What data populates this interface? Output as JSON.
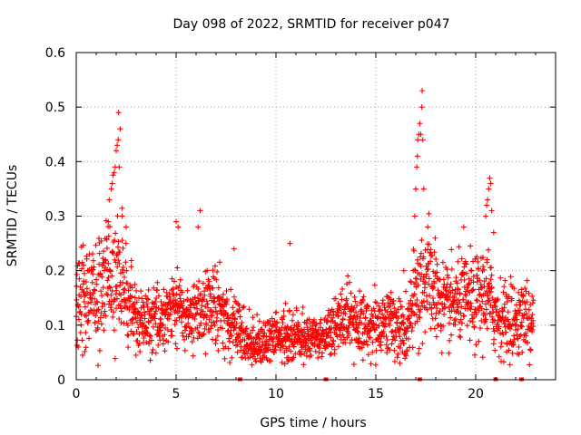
{
  "chart_data": {
    "type": "scatter",
    "title": "Day 098 of 2022, SRMTID for receiver p047",
    "xlabel": "GPS time / hours",
    "ylabel": "SRMTID / TECUs",
    "xlim": [
      0,
      24
    ],
    "ylim": [
      0,
      0.6
    ],
    "x_ticks": [
      "0",
      "5",
      "10",
      "15",
      "20"
    ],
    "y_ticks": [
      "0",
      "0.1",
      "0.2",
      "0.3",
      "0.4",
      "0.5",
      "0.6"
    ],
    "grid": true,
    "marker": "plus",
    "color": "#ff0000",
    "series": [
      {
        "name": "SRMTID",
        "profile": [
          [
            0.0,
            0.13,
            0.06
          ],
          [
            0.5,
            0.14,
            0.06
          ],
          [
            1.0,
            0.15,
            0.05
          ],
          [
            1.5,
            0.19,
            0.06
          ],
          [
            2.0,
            0.2,
            0.07
          ],
          [
            2.5,
            0.16,
            0.05
          ],
          [
            3.0,
            0.11,
            0.035
          ],
          [
            3.5,
            0.1,
            0.03
          ],
          [
            4.0,
            0.11,
            0.03
          ],
          [
            4.5,
            0.12,
            0.035
          ],
          [
            5.0,
            0.14,
            0.04
          ],
          [
            5.5,
            0.11,
            0.03
          ],
          [
            6.0,
            0.12,
            0.035
          ],
          [
            6.5,
            0.14,
            0.04
          ],
          [
            7.0,
            0.13,
            0.04
          ],
          [
            7.5,
            0.12,
            0.04
          ],
          [
            8.0,
            0.1,
            0.03
          ],
          [
            8.5,
            0.07,
            0.025
          ],
          [
            9.0,
            0.07,
            0.02
          ],
          [
            9.5,
            0.07,
            0.025
          ],
          [
            10.0,
            0.08,
            0.025
          ],
          [
            10.5,
            0.08,
            0.03
          ],
          [
            11.0,
            0.08,
            0.025
          ],
          [
            11.5,
            0.075,
            0.02
          ],
          [
            12.0,
            0.08,
            0.02
          ],
          [
            12.5,
            0.085,
            0.025
          ],
          [
            13.0,
            0.1,
            0.03
          ],
          [
            13.5,
            0.11,
            0.035
          ],
          [
            14.0,
            0.1,
            0.03
          ],
          [
            14.5,
            0.1,
            0.03
          ],
          [
            15.0,
            0.1,
            0.035
          ],
          [
            15.5,
            0.11,
            0.03
          ],
          [
            16.0,
            0.1,
            0.035
          ],
          [
            16.5,
            0.08,
            0.03
          ],
          [
            17.0,
            0.15,
            0.06
          ],
          [
            17.5,
            0.19,
            0.06
          ],
          [
            18.0,
            0.16,
            0.05
          ],
          [
            18.5,
            0.13,
            0.04
          ],
          [
            19.0,
            0.14,
            0.04
          ],
          [
            19.5,
            0.15,
            0.04
          ],
          [
            20.0,
            0.14,
            0.045
          ],
          [
            20.5,
            0.16,
            0.05
          ],
          [
            21.0,
            0.12,
            0.04
          ],
          [
            21.5,
            0.11,
            0.035
          ],
          [
            22.0,
            0.11,
            0.035
          ],
          [
            22.5,
            0.11,
            0.035
          ],
          [
            22.9,
            0.1,
            0.03
          ]
        ],
        "highlights": [
          [
            1.65,
            0.33
          ],
          [
            1.75,
            0.35
          ],
          [
            1.8,
            0.36
          ],
          [
            1.9,
            0.38
          ],
          [
            1.95,
            0.39
          ],
          [
            2.0,
            0.42
          ],
          [
            2.05,
            0.43
          ],
          [
            2.1,
            0.44
          ],
          [
            2.12,
            0.49
          ],
          [
            2.2,
            0.46
          ],
          [
            2.15,
            0.39
          ],
          [
            2.3,
            0.3
          ],
          [
            2.5,
            0.28
          ],
          [
            1.6,
            0.29
          ],
          [
            5.0,
            0.29
          ],
          [
            5.1,
            0.28
          ],
          [
            6.2,
            0.31
          ],
          [
            6.1,
            0.28
          ],
          [
            7.9,
            0.24
          ],
          [
            10.7,
            0.25
          ],
          [
            16.4,
            0.2
          ],
          [
            16.95,
            0.3
          ],
          [
            17.0,
            0.35
          ],
          [
            17.05,
            0.39
          ],
          [
            17.08,
            0.41
          ],
          [
            17.1,
            0.44
          ],
          [
            17.15,
            0.45
          ],
          [
            17.2,
            0.47
          ],
          [
            17.25,
            0.45
          ],
          [
            17.3,
            0.5
          ],
          [
            17.32,
            0.53
          ],
          [
            17.35,
            0.44
          ],
          [
            17.4,
            0.35
          ],
          [
            17.6,
            0.28
          ],
          [
            20.5,
            0.3
          ],
          [
            20.55,
            0.32
          ],
          [
            20.6,
            0.33
          ],
          [
            20.65,
            0.35
          ],
          [
            20.7,
            0.37
          ],
          [
            20.75,
            0.36
          ],
          [
            20.8,
            0.31
          ],
          [
            20.9,
            0.27
          ],
          [
            19.4,
            0.28
          ]
        ],
        "zero_points": [
          [
            8.2,
            0.0
          ],
          [
            12.5,
            0.0
          ],
          [
            17.2,
            0.0
          ],
          [
            21.0,
            0.0
          ],
          [
            22.3,
            0.0
          ]
        ]
      }
    ]
  }
}
